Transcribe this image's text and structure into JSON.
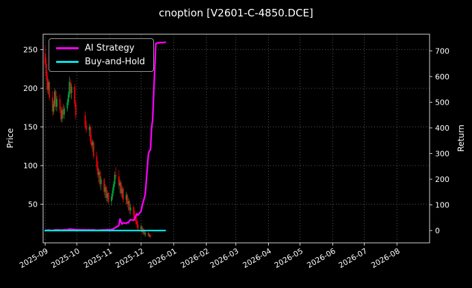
{
  "page": {
    "background": "#000000",
    "text_color": "#ffffff"
  },
  "chart_data": {
    "type": "candlestick",
    "title": "cnoption [V2601-C-4850.DCE]",
    "x_axis": {
      "tick_labels": [
        "2025-09",
        "2025-10",
        "2025-11",
        "2025-12",
        "2026-01",
        "2026-02",
        "2026-03",
        "2026-04",
        "2026-05",
        "2026-06",
        "2026-07",
        "2026-08"
      ],
      "range": [
        "2025-08-30",
        "2026-09-01"
      ]
    },
    "left_axis": {
      "label": "Price",
      "ticks": [
        50,
        100,
        150,
        200,
        250
      ],
      "range": [
        0,
        270
      ]
    },
    "right_axis": {
      "label": "Return",
      "ticks": [
        0,
        100,
        200,
        300,
        400,
        500,
        600,
        700
      ],
      "range": [
        -48,
        765
      ]
    },
    "grid": {
      "show": true,
      "style": "dotted",
      "color": "#888888"
    },
    "legend": {
      "position": "upper-left",
      "entries": [
        {
          "label": "AI Strategy",
          "color": "#ff00ff"
        },
        {
          "label": "Buy-and-Hold",
          "color": "#00e6e6"
        }
      ]
    },
    "candles": {
      "up_color": "#00a43b",
      "down_color": "#e8000b",
      "dates": [
        "2025-09-01",
        "2025-09-02",
        "2025-09-03",
        "2025-09-04",
        "2025-09-05",
        "2025-09-08",
        "2025-09-09",
        "2025-09-10",
        "2025-09-11",
        "2025-09-12",
        "2025-09-15",
        "2025-09-16",
        "2025-09-17",
        "2025-09-18",
        "2025-09-19",
        "2025-09-22",
        "2025-09-23",
        "2025-09-24",
        "2025-09-25",
        "2025-09-26",
        "2025-09-29",
        "2025-09-30",
        "2025-10-09",
        "2025-10-10",
        "2025-10-13",
        "2025-10-14",
        "2025-10-15",
        "2025-10-16",
        "2025-10-17",
        "2025-10-20",
        "2025-10-21",
        "2025-10-22",
        "2025-10-23",
        "2025-10-24",
        "2025-10-27",
        "2025-10-28",
        "2025-10-29",
        "2025-10-30",
        "2025-10-31",
        "2025-11-03",
        "2025-11-04",
        "2025-11-05",
        "2025-11-06",
        "2025-11-07",
        "2025-11-10",
        "2025-11-11",
        "2025-11-12",
        "2025-11-13",
        "2025-11-14",
        "2025-11-17",
        "2025-11-18",
        "2025-11-19",
        "2025-11-20",
        "2025-11-21",
        "2025-11-24",
        "2025-11-25",
        "2025-11-26",
        "2025-11-27",
        "2025-11-28",
        "2025-12-01",
        "2025-12-02",
        "2025-12-03",
        "2025-12-04",
        "2025-12-05",
        "2025-12-08",
        "2025-12-09",
        "2025-12-10"
      ],
      "ohlc": [
        [
          245,
          256,
          228,
          232
        ],
        [
          232,
          240,
          210,
          216
        ],
        [
          216,
          222,
          194,
          198
        ],
        [
          198,
          212,
          192,
          208
        ],
        [
          208,
          210,
          184,
          188
        ],
        [
          188,
          196,
          164,
          170
        ],
        [
          170,
          184,
          166,
          180
        ],
        [
          180,
          200,
          176,
          196
        ],
        [
          196,
          198,
          172,
          176
        ],
        [
          176,
          190,
          170,
          186
        ],
        [
          186,
          192,
          168,
          172
        ],
        [
          172,
          176,
          156,
          160
        ],
        [
          160,
          176,
          156,
          172
        ],
        [
          172,
          180,
          162,
          166
        ],
        [
          166,
          178,
          160,
          174
        ],
        [
          174,
          186,
          170,
          182
        ],
        [
          182,
          196,
          178,
          192
        ],
        [
          192,
          215,
          188,
          208
        ],
        [
          208,
          212,
          188,
          194
        ],
        [
          194,
          206,
          186,
          202
        ],
        [
          202,
          206,
          176,
          180
        ],
        [
          180,
          184,
          160,
          165
        ],
        [
          165,
          170,
          148,
          152
        ],
        [
          152,
          158,
          142,
          146
        ],
        [
          146,
          154,
          138,
          150
        ],
        [
          150,
          152,
          128,
          132
        ],
        [
          132,
          140,
          122,
          126
        ],
        [
          126,
          134,
          118,
          130
        ],
        [
          130,
          132,
          108,
          112
        ],
        [
          112,
          118,
          94,
          98
        ],
        [
          98,
          106,
          84,
          88
        ],
        [
          88,
          96,
          78,
          92
        ],
        [
          92,
          94,
          72,
          76
        ],
        [
          76,
          86,
          68,
          82
        ],
        [
          82,
          84,
          62,
          66
        ],
        [
          66,
          76,
          58,
          72
        ],
        [
          72,
          74,
          54,
          58
        ],
        [
          58,
          68,
          52,
          64
        ],
        [
          64,
          66,
          50,
          54
        ],
        [
          54,
          64,
          48,
          60
        ],
        [
          60,
          72,
          56,
          68
        ],
        [
          68,
          80,
          64,
          76
        ],
        [
          76,
          92,
          72,
          88
        ],
        [
          88,
          98,
          82,
          86
        ],
        [
          86,
          94,
          70,
          74
        ],
        [
          74,
          82,
          64,
          78
        ],
        [
          78,
          80,
          60,
          64
        ],
        [
          64,
          74,
          58,
          70
        ],
        [
          70,
          72,
          52,
          56
        ],
        [
          56,
          66,
          50,
          62
        ],
        [
          62,
          64,
          46,
          50
        ],
        [
          50,
          58,
          42,
          54
        ],
        [
          54,
          56,
          38,
          42
        ],
        [
          42,
          50,
          36,
          46
        ],
        [
          46,
          48,
          32,
          36
        ],
        [
          36,
          42,
          28,
          32
        ],
        [
          32,
          38,
          24,
          28
        ],
        [
          28,
          34,
          20,
          24
        ],
        [
          24,
          28,
          16,
          18
        ],
        [
          18,
          24,
          14,
          21
        ],
        [
          21,
          22,
          12,
          14
        ],
        [
          14,
          19,
          11,
          17
        ],
        [
          17,
          18,
          9,
          11
        ],
        [
          11,
          15,
          8,
          13
        ],
        [
          13,
          14,
          8,
          9
        ],
        [
          9,
          12,
          7,
          10
        ],
        [
          10,
          11,
          6,
          8
        ]
      ]
    },
    "series": [
      {
        "name": "AI Strategy",
        "axis": "right",
        "color": "#ff00ff",
        "width": 2.3,
        "dates": [
          "2025-09-01",
          "2025-09-02",
          "2025-09-03",
          "2025-09-04",
          "2025-09-05",
          "2025-09-08",
          "2025-09-09",
          "2025-09-10",
          "2025-09-11",
          "2025-09-12",
          "2025-09-15",
          "2025-09-16",
          "2025-09-17",
          "2025-09-18",
          "2025-09-19",
          "2025-09-22",
          "2025-09-23",
          "2025-09-24",
          "2025-09-25",
          "2025-09-26",
          "2025-09-29",
          "2025-09-30",
          "2025-10-09",
          "2025-10-10",
          "2025-10-13",
          "2025-10-14",
          "2025-10-15",
          "2025-10-16",
          "2025-10-17",
          "2025-10-20",
          "2025-10-21",
          "2025-10-22",
          "2025-10-23",
          "2025-10-24",
          "2025-10-27",
          "2025-10-28",
          "2025-10-29",
          "2025-10-30",
          "2025-10-31",
          "2025-11-03",
          "2025-11-04",
          "2025-11-05",
          "2025-11-06",
          "2025-11-07",
          "2025-11-10",
          "2025-11-11",
          "2025-11-12",
          "2025-11-13",
          "2025-11-14",
          "2025-11-17",
          "2025-11-18",
          "2025-11-19",
          "2025-11-20",
          "2025-11-21",
          "2025-11-24",
          "2025-11-25",
          "2025-11-26",
          "2025-11-27",
          "2025-11-28",
          "2025-12-01",
          "2025-12-02",
          "2025-12-03",
          "2025-12-04",
          "2025-12-05",
          "2025-12-08",
          "2025-12-09",
          "2025-12-10",
          "2025-12-11",
          "2025-12-12",
          "2025-12-15",
          "2025-12-16",
          "2025-12-17",
          "2025-12-18",
          "2025-12-19",
          "2025-12-22",
          "2025-12-23",
          "2025-12-24"
        ],
        "values": [
          0,
          1,
          1,
          2,
          1,
          0,
          1,
          2,
          2,
          3,
          2,
          1,
          2,
          2,
          3,
          3,
          4,
          6,
          5,
          5,
          4,
          3,
          3,
          2,
          3,
          2,
          2,
          3,
          2,
          1,
          1,
          2,
          1,
          2,
          2,
          3,
          2,
          4,
          3,
          4,
          5,
          7,
          10,
          12,
          20,
          45,
          35,
          25,
          30,
          28,
          32,
          30,
          38,
          42,
          40,
          48,
          55,
          65,
          60,
          75,
          95,
          110,
          125,
          140,
          300,
          310,
          315,
          400,
          430,
          728,
          730,
          732,
          731,
          733,
          732,
          733,
          734
        ]
      },
      {
        "name": "Buy-and-Hold",
        "axis": "right",
        "color": "#00e6e6",
        "width": 2.3,
        "dates": [
          "2025-09-01",
          "2025-12-24"
        ],
        "values": [
          0,
          0
        ]
      }
    ]
  }
}
